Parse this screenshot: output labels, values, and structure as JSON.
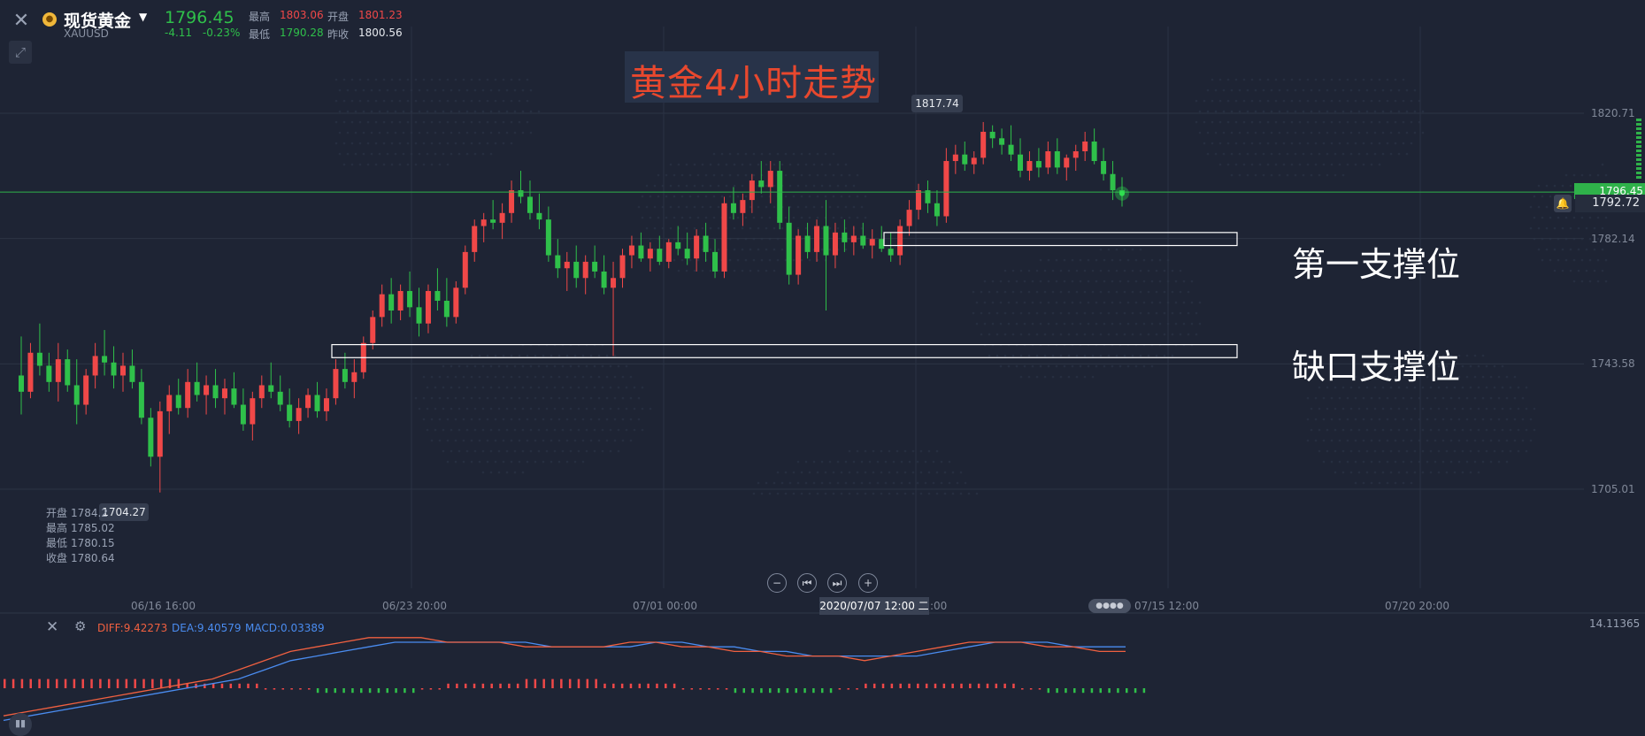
{
  "header": {
    "name": "现货黄金",
    "code": "XAUUSD",
    "price": "1796.45",
    "change": "-4.11",
    "change_pct": "-0.23%",
    "high_label": "最高",
    "high_value": "1803.06",
    "open_label": "开盘",
    "open_value": "1801.23",
    "low_label": "最低",
    "low_value": "1790.28",
    "prev_label": "昨收",
    "prev_value": "1800.56"
  },
  "title": "黄金4小时走势",
  "price_axis": [
    "1820.71",
    "1782.14",
    "1743.58",
    "1705.01"
  ],
  "current_price_tag": "1796.45",
  "alert_price": "1792.72",
  "high_marker": "1817.74",
  "low_marker": "1704.27",
  "ohlc_tooltip": {
    "open_label": "开盘",
    "open_value": "1784.2",
    "high_label": "最高",
    "high_value": "1785.02",
    "low_label": "最低",
    "low_value": "1780.15",
    "close_label": "收盘",
    "close_value": "1780.64"
  },
  "x_axis": [
    "06/16 16:00",
    "06/23 20:00",
    "07/01 00:00",
    "2020/07/07 12:00 二",
    ":00",
    "07/15 12:00",
    "07/20 20:00"
  ],
  "annotations": {
    "support1": "第一支撑位",
    "gap_support": "缺口支撑位"
  },
  "macd": {
    "diff": "DIFF:9.42273",
    "dea": "DEA:9.40579",
    "macd": "MACD:0.03389",
    "axis_value": "14.11365"
  },
  "colors": {
    "up": "#f04848",
    "down": "#2fc04a",
    "background": "#1e2434",
    "title": "#e8482e",
    "diff": "#f06040",
    "dea": "#4a8cf0"
  },
  "chart_data": {
    "type": "candlestick",
    "title": "黄金4小时走势",
    "ylim": [
      1680,
      1830
    ],
    "ohlc": [
      [
        1740,
        1752,
        1728,
        1735
      ],
      [
        1735,
        1750,
        1733,
        1747
      ],
      [
        1747,
        1756,
        1740,
        1743
      ],
      [
        1743,
        1747,
        1735,
        1738
      ],
      [
        1738,
        1750,
        1732,
        1745
      ],
      [
        1745,
        1748,
        1735,
        1737
      ],
      [
        1737,
        1745,
        1725,
        1731
      ],
      [
        1731,
        1742,
        1728,
        1740
      ],
      [
        1740,
        1750,
        1736,
        1746
      ],
      [
        1746,
        1754,
        1740,
        1744
      ],
      [
        1744,
        1749,
        1736,
        1740
      ],
      [
        1740,
        1747,
        1735,
        1743
      ],
      [
        1743,
        1748,
        1736,
        1738
      ],
      [
        1738,
        1742,
        1725,
        1727
      ],
      [
        1727,
        1730,
        1712,
        1715
      ],
      [
        1715,
        1732,
        1704,
        1729
      ],
      [
        1729,
        1737,
        1722,
        1734
      ],
      [
        1734,
        1739,
        1728,
        1730
      ],
      [
        1730,
        1742,
        1727,
        1738
      ],
      [
        1738,
        1744,
        1732,
        1734
      ],
      [
        1734,
        1740,
        1728,
        1737
      ],
      [
        1737,
        1742,
        1730,
        1733
      ],
      [
        1733,
        1739,
        1728,
        1736
      ],
      [
        1736,
        1741,
        1730,
        1731
      ],
      [
        1731,
        1736,
        1723,
        1725
      ],
      [
        1725,
        1735,
        1720,
        1733
      ],
      [
        1733,
        1740,
        1730,
        1737
      ],
      [
        1737,
        1744,
        1733,
        1735
      ],
      [
        1735,
        1740,
        1729,
        1731
      ],
      [
        1731,
        1736,
        1724,
        1726
      ],
      [
        1726,
        1733,
        1722,
        1730
      ],
      [
        1730,
        1736,
        1727,
        1734
      ],
      [
        1734,
        1738,
        1727,
        1729
      ],
      [
        1729,
        1736,
        1726,
        1733
      ],
      [
        1733,
        1745,
        1731,
        1742
      ],
      [
        1742,
        1747,
        1736,
        1738
      ],
      [
        1738,
        1745,
        1733,
        1741
      ],
      [
        1741,
        1752,
        1739,
        1750
      ],
      [
        1750,
        1760,
        1748,
        1758
      ],
      [
        1758,
        1768,
        1755,
        1765
      ],
      [
        1765,
        1770,
        1756,
        1760
      ],
      [
        1760,
        1768,
        1757,
        1766
      ],
      [
        1766,
        1772,
        1758,
        1761
      ],
      [
        1761,
        1767,
        1752,
        1756
      ],
      [
        1756,
        1768,
        1753,
        1766
      ],
      [
        1766,
        1773,
        1760,
        1763
      ],
      [
        1763,
        1770,
        1755,
        1758
      ],
      [
        1758,
        1769,
        1756,
        1767
      ],
      [
        1767,
        1780,
        1765,
        1778
      ],
      [
        1778,
        1788,
        1775,
        1786
      ],
      [
        1786,
        1790,
        1781,
        1788
      ],
      [
        1788,
        1794,
        1785,
        1787
      ],
      [
        1787,
        1793,
        1782,
        1790
      ],
      [
        1790,
        1800,
        1787,
        1797
      ],
      [
        1797,
        1803,
        1793,
        1795
      ],
      [
        1795,
        1800,
        1788,
        1790
      ],
      [
        1790,
        1796,
        1785,
        1788
      ],
      [
        1788,
        1792,
        1775,
        1777
      ],
      [
        1777,
        1782,
        1770,
        1773
      ],
      [
        1773,
        1778,
        1766,
        1775
      ],
      [
        1775,
        1780,
        1767,
        1770
      ],
      [
        1770,
        1777,
        1765,
        1775
      ],
      [
        1775,
        1780,
        1770,
        1772
      ],
      [
        1772,
        1777,
        1765,
        1767
      ],
      [
        1767,
        1775,
        1746,
        1770
      ],
      [
        1770,
        1779,
        1767,
        1777
      ],
      [
        1777,
        1783,
        1773,
        1780
      ],
      [
        1780,
        1784,
        1775,
        1776
      ],
      [
        1776,
        1781,
        1772,
        1779
      ],
      [
        1779,
        1783,
        1774,
        1775
      ],
      [
        1775,
        1782,
        1773,
        1781
      ],
      [
        1781,
        1786,
        1777,
        1779
      ],
      [
        1779,
        1784,
        1774,
        1776
      ],
      [
        1776,
        1785,
        1772,
        1783
      ],
      [
        1783,
        1787,
        1775,
        1778
      ],
      [
        1778,
        1782,
        1770,
        1772
      ],
      [
        1772,
        1795,
        1770,
        1793
      ],
      [
        1793,
        1798,
        1788,
        1790
      ],
      [
        1790,
        1796,
        1786,
        1794
      ],
      [
        1794,
        1802,
        1790,
        1800
      ],
      [
        1800,
        1806,
        1796,
        1798
      ],
      [
        1798,
        1806,
        1793,
        1803
      ],
      [
        1803,
        1806,
        1785,
        1787
      ],
      [
        1787,
        1792,
        1768,
        1771
      ],
      [
        1771,
        1785,
        1768,
        1783
      ],
      [
        1783,
        1787,
        1776,
        1778
      ],
      [
        1778,
        1788,
        1775,
        1786
      ],
      [
        1786,
        1794,
        1760,
        1777
      ],
      [
        1777,
        1787,
        1773,
        1784
      ],
      [
        1784,
        1788,
        1778,
        1781
      ],
      [
        1781,
        1786,
        1777,
        1783
      ],
      [
        1783,
        1787,
        1779,
        1780
      ],
      [
        1780,
        1785,
        1776,
        1782
      ],
      [
        1782,
        1786,
        1778,
        1779
      ],
      [
        1779,
        1784,
        1775,
        1777
      ],
      [
        1777,
        1788,
        1774,
        1786
      ],
      [
        1786,
        1794,
        1783,
        1791
      ],
      [
        1791,
        1799,
        1788,
        1797
      ],
      [
        1797,
        1800,
        1790,
        1793
      ],
      [
        1793,
        1797,
        1786,
        1789
      ],
      [
        1789,
        1810,
        1787,
        1806
      ],
      [
        1806,
        1811,
        1802,
        1808
      ],
      [
        1808,
        1812,
        1803,
        1805
      ],
      [
        1805,
        1809,
        1802,
        1807
      ],
      [
        1807,
        1818,
        1805,
        1815
      ],
      [
        1815,
        1817,
        1810,
        1813
      ],
      [
        1813,
        1816,
        1808,
        1811
      ],
      [
        1811,
        1817,
        1806,
        1808
      ],
      [
        1808,
        1813,
        1801,
        1803
      ],
      [
        1803,
        1809,
        1800,
        1806
      ],
      [
        1806,
        1810,
        1801,
        1804
      ],
      [
        1804,
        1812,
        1802,
        1809
      ],
      [
        1809,
        1813,
        1802,
        1804
      ],
      [
        1804,
        1808,
        1800,
        1807
      ],
      [
        1807,
        1811,
        1803,
        1809
      ],
      [
        1809,
        1815,
        1806,
        1812
      ],
      [
        1812,
        1816,
        1805,
        1806
      ],
      [
        1806,
        1810,
        1800,
        1802
      ],
      [
        1802,
        1806,
        1794,
        1797
      ],
      [
        1797,
        1801,
        1792,
        1796
      ]
    ],
    "x_ticks": [
      "06/16 16:00",
      "06/23 20:00",
      "07/01 00:00",
      "07/15 12:00",
      "07/20 20:00"
    ],
    "horizontal_line": 1796.45,
    "zones": [
      {
        "label": "第一支撑位",
        "from": 1780.0,
        "to": 1784.0
      },
      {
        "label": "缺口支撑位",
        "from": 1745.5,
        "to": 1749.5
      }
    ],
    "macd_diff": [
      -6,
      -5,
      -4,
      -3,
      -2,
      -1,
      0,
      1,
      2,
      4,
      6,
      8,
      9,
      10,
      11,
      11,
      11,
      10,
      10,
      10,
      9,
      9,
      9,
      9,
      10,
      10,
      9,
      9,
      8,
      8,
      7,
      7,
      7,
      6,
      7,
      8,
      9,
      10,
      10,
      10,
      9,
      9,
      8,
      8
    ],
    "macd_dea": [
      -7,
      -6,
      -5,
      -4,
      -3,
      -2,
      -1,
      0,
      1,
      2,
      4,
      6,
      7,
      8,
      9,
      10,
      10,
      10,
      10,
      10,
      10,
      9,
      9,
      9,
      9,
      10,
      10,
      9,
      9,
      8,
      8,
      7,
      7,
      7,
      7,
      7,
      8,
      9,
      10,
      10,
      10,
      9,
      9,
      9
    ],
    "macd_hist": [
      2,
      2,
      2,
      2,
      2,
      2,
      2,
      1,
      1,
      1,
      0,
      0,
      -1,
      -1,
      -1,
      -1,
      0,
      1,
      1,
      1,
      2,
      2,
      2,
      1,
      1,
      1,
      0,
      0,
      -1,
      -1,
      -1,
      -1,
      0,
      1,
      1,
      1,
      1,
      1,
      1,
      0,
      -1,
      -1,
      -1,
      -1
    ]
  }
}
